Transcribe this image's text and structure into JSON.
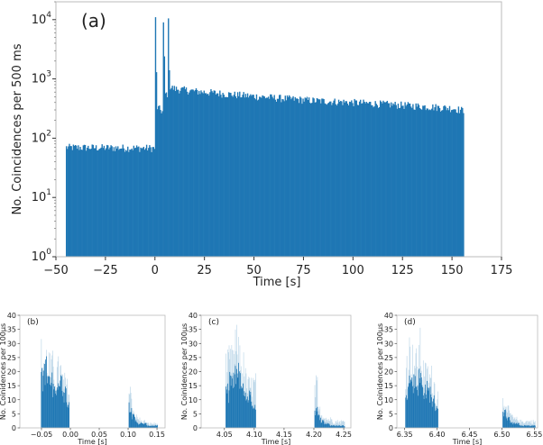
{
  "chart_data": [
    {
      "type": "bar",
      "panel_label": "(a)",
      "xlabel": "Time [s]",
      "ylabel": "No. Coincidences per 500 ms",
      "yscale": "log",
      "xlim": [
        -50,
        175
      ],
      "ylim": [
        1,
        20000
      ],
      "xticks": [
        "−50",
        "−25",
        "0",
        "25",
        "50",
        "75",
        "100",
        "125",
        "150",
        "175"
      ],
      "xtick_values": [
        -50,
        -25,
        0,
        25,
        50,
        75,
        100,
        125,
        150,
        175
      ],
      "yticks": [
        {
          "base": "10",
          "exp": "0"
        },
        {
          "base": "10",
          "exp": "1"
        },
        {
          "base": "10",
          "exp": "2"
        },
        {
          "base": "10",
          "exp": "3"
        },
        {
          "base": "10",
          "exp": "4"
        }
      ],
      "ytick_values": [
        1,
        10,
        100,
        1000,
        10000
      ],
      "bin_width": 0.5,
      "color": "#1f77b4",
      "profile": [
        [
          -45,
          70
        ],
        [
          -0.5,
          68
        ],
        [
          0,
          420
        ],
        [
          1,
          330
        ],
        [
          3.5,
          280
        ],
        [
          5,
          560
        ],
        [
          6.5,
          560
        ],
        [
          7.5,
          720
        ],
        [
          10,
          680
        ],
        [
          20,
          620
        ],
        [
          40,
          540
        ],
        [
          60,
          480
        ],
        [
          80,
          430
        ],
        [
          100,
          400
        ],
        [
          125,
          360
        ],
        [
          150,
          320
        ],
        [
          156,
          290
        ]
      ],
      "spikes": [
        [
          0,
          11000
        ],
        [
          0.5,
          1300
        ],
        [
          4,
          9000
        ],
        [
          4.5,
          2400
        ],
        [
          6.5,
          10500
        ],
        [
          7,
          1400
        ]
      ]
    },
    {
      "type": "bar",
      "panel_label": "(b)",
      "xlabel": "Time [s]",
      "ylabel": "No. Coinidences per 100µs",
      "xlim": [
        -0.0875,
        0.164
      ],
      "ylim": [
        0,
        40
      ],
      "xticks": [
        "−0.05",
        "0.00",
        "0.05",
        "0.10",
        "0.15"
      ],
      "xtick_values": [
        -0.05,
        0,
        0.05,
        0.1,
        0.15
      ],
      "yticks": [
        "0",
        "5",
        "10",
        "15",
        "20",
        "25",
        "30",
        "35",
        "40"
      ],
      "ytick_values": [
        0,
        5,
        10,
        15,
        20,
        25,
        30,
        35,
        40
      ],
      "bursts": [
        {
          "start": -0.052,
          "bin": 0.005,
          "dark": [
            22,
            27,
            24,
            20,
            18,
            21,
            22,
            19,
            16,
            12
          ],
          "light": [
            33,
            32,
            30,
            27,
            28,
            25,
            26,
            22,
            20,
            18
          ]
        },
        {
          "start": 0.101,
          "bin": 0.005,
          "dark": [
            10,
            5,
            3,
            2,
            2,
            2,
            1,
            1,
            1,
            1
          ],
          "light": [
            16,
            8,
            5,
            4,
            3,
            3,
            2,
            2,
            2,
            2
          ]
        }
      ]
    },
    {
      "type": "bar",
      "panel_label": "(c)",
      "xlabel": "Time [s]",
      "ylabel": "No. Coinidences per 100µs",
      "xlim": [
        4.011,
        4.262
      ],
      "ylim": [
        0,
        40
      ],
      "xticks": [
        "4.05",
        "4.10",
        "4.15",
        "4.20",
        "4.25"
      ],
      "xtick_values": [
        4.05,
        4.1,
        4.15,
        4.2,
        4.25
      ],
      "yticks": [
        "0",
        "5",
        "10",
        "15",
        "20",
        "25",
        "30",
        "35",
        "40"
      ],
      "ytick_values": [
        0,
        5,
        10,
        15,
        20,
        25,
        30,
        35,
        40
      ],
      "bursts": [
        {
          "start": 4.052,
          "bin": 0.005,
          "dark": [
            16,
            22,
            20,
            25,
            24,
            20,
            14,
            15,
            13,
            10
          ],
          "light": [
            28,
            30,
            33,
            37,
            34,
            28,
            22,
            19,
            19,
            20
          ]
        },
        {
          "start": 4.201,
          "bin": 0.005,
          "dark": [
            8,
            5,
            3,
            2,
            2,
            1,
            1,
            1,
            1,
            1
          ],
          "light": [
            19,
            8,
            6,
            5,
            4,
            4,
            3,
            3,
            3,
            3
          ]
        }
      ]
    },
    {
      "type": "bar",
      "panel_label": "(d)",
      "xlabel": "Time [s]",
      "ylabel": "No. Coinidences per 100µs",
      "xlim": [
        6.338,
        6.555
      ],
      "ylim": [
        0,
        40
      ],
      "xticks": [
        "6.35",
        "6.40",
        "6.45",
        "6.50",
        "6.55"
      ],
      "xtick_values": [
        6.35,
        6.4,
        6.45,
        6.5,
        6.55
      ],
      "yticks": [
        "0",
        "5",
        "10",
        "15",
        "20",
        "25",
        "30",
        "35",
        "40"
      ],
      "ytick_values": [
        0,
        5,
        10,
        15,
        20,
        25,
        30,
        35,
        40
      ],
      "bursts": [
        {
          "start": 6.351,
          "bin": 0.005,
          "dark": [
            18,
            24,
            22,
            20,
            22,
            18,
            17,
            16,
            12,
            10
          ],
          "light": [
            30,
            35,
            31,
            29,
            36,
            26,
            24,
            23,
            20,
            15
          ]
        },
        {
          "start": 6.501,
          "bin": 0.005,
          "dark": [
            7,
            4,
            3,
            2,
            2,
            1,
            1,
            1,
            1,
            1
          ],
          "light": [
            13,
            8,
            6,
            4,
            4,
            3,
            3,
            3,
            3,
            3
          ]
        }
      ]
    }
  ]
}
